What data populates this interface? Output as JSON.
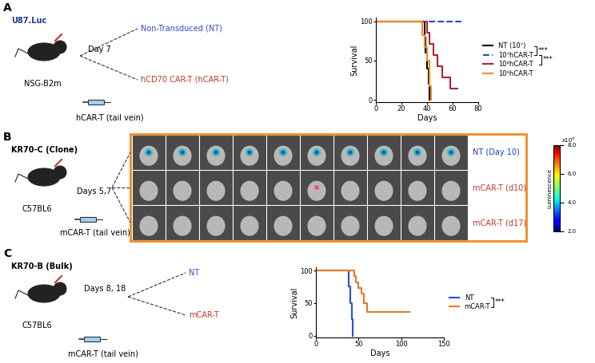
{
  "panels": {
    "A": {
      "label": "A",
      "cell_line": "U87.Luc",
      "schedule": "Day 7",
      "arm_1": "Non-Transduced (NT)",
      "arm_2": "hCD70 CAR-T (hCAR-T)",
      "mouse": "NSG-B2m",
      "injection": "hCAR-T (tail vein)"
    },
    "B": {
      "label": "B",
      "cell_line": "KR70-C (Clone)",
      "schedule": "Days 5,7",
      "mouse": "C57BL6",
      "injection": "mCAR-T (tail vein)",
      "rows": [
        "NT (Day 10)",
        "mCAR-T (d10)",
        "mCAR-T (d17)"
      ],
      "colorbar": {
        "label": "Luminescence",
        "multiplier": "x10⁶",
        "range": [
          2.0,
          8.0
        ],
        "ticks": [
          {
            "value": 2.0,
            "label": "2.0"
          },
          {
            "value": 4.0,
            "label": "4.0"
          },
          {
            "value": 6.0,
            "label": "6.0"
          },
          {
            "value": 8.0,
            "label": "8.0"
          }
        ]
      }
    },
    "C": {
      "label": "C",
      "cell_line": "KR70-B (Bulk)",
      "schedule": "Days 8, 18",
      "arm_1": "NT",
      "arm_2": "mCAR-T",
      "mouse": "C57BL6",
      "injection": "mCAR-T (tail vein)"
    }
  },
  "chart_data": [
    {
      "type": "step",
      "x_label": "Days",
      "y_label": "Survival",
      "xlim": [
        0,
        80
      ],
      "xticks": [
        0,
        20,
        40,
        60,
        80
      ],
      "ylim": [
        -3,
        105
      ],
      "yticks": [
        0,
        50,
        100
      ],
      "legend": "center left",
      "series": [
        {
          "name": "NT (10⁷)",
          "color": "#000000",
          "line_style": "solid",
          "x": [
            0,
            37,
            38,
            39,
            40,
            41,
            42
          ],
          "values": [
            100,
            100,
            80,
            60,
            40,
            20,
            0
          ]
        },
        {
          "name": "10⁷hCAR-T",
          "color": "#1f4fbf",
          "line_style": "dashed",
          "x": [
            0,
            67
          ],
          "values": [
            100,
            100
          ]
        },
        {
          "name": "10⁶hCAR-T",
          "color": "#b22234",
          "line_style": "solid",
          "x": [
            0,
            40,
            42,
            45,
            48,
            52,
            55,
            58,
            60,
            64
          ],
          "values": [
            100,
            86,
            71,
            57,
            43,
            29,
            29,
            14,
            14,
            14
          ]
        },
        {
          "name": "10⁵hCAR-T",
          "color": "#f08a24",
          "line_style": "solid",
          "x": [
            0,
            34,
            36,
            38,
            40,
            42,
            43
          ],
          "values": [
            100,
            100,
            83,
            67,
            50,
            17,
            0
          ]
        }
      ],
      "annotations": [
        {
          "text": "***",
          "between": [
            "NT (10⁷)",
            "10⁷hCAR-T"
          ]
        },
        {
          "text": "***",
          "between": [
            "10⁷hCAR-T",
            "10⁶hCAR-T"
          ]
        }
      ]
    },
    {
      "type": "step",
      "x_label": "Days",
      "y_label": "Survival",
      "xlim": [
        0,
        150
      ],
      "xticks": [
        0,
        50,
        100,
        150
      ],
      "ylim": [
        -3,
        105
      ],
      "yticks": [
        0,
        50,
        100
      ],
      "legend": "center left",
      "series": [
        {
          "name": "NT",
          "color": "#2a4fd0",
          "line_style": "solid",
          "x": [
            0,
            36,
            38,
            40,
            42,
            43
          ],
          "values": [
            100,
            100,
            75,
            50,
            25,
            0
          ]
        },
        {
          "name": "mCAR-T",
          "color": "#e07b2a",
          "line_style": "solid",
          "x": [
            0,
            45,
            47,
            50,
            53,
            56,
            60,
            110
          ],
          "values": [
            100,
            91,
            82,
            73,
            64,
            50,
            36,
            36
          ]
        }
      ],
      "annotations": [
        {
          "text": "***",
          "between": [
            "NT",
            "mCAR-T"
          ]
        }
      ]
    }
  ]
}
